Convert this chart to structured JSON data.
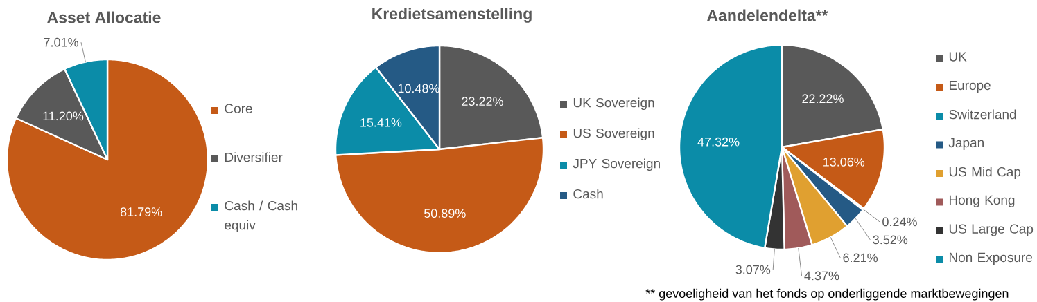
{
  "chart_data": [
    {
      "type": "pie",
      "title": "Asset Allocatie",
      "categories": [
        "Core",
        "Diversifier",
        "Cash / Cash equiv"
      ],
      "values": [
        81.79,
        11.2,
        7.01
      ],
      "colors": [
        "#c55a17",
        "#595959",
        "#0b8ca8"
      ],
      "value_labels": [
        "81.79%",
        "11.20%",
        "7.01%"
      ],
      "legend": "right"
    },
    {
      "type": "pie",
      "title": "Kredietsamenstelling",
      "categories": [
        "UK Sovereign",
        "US Sovereign",
        "JPY Sovereign",
        "Cash"
      ],
      "values": [
        23.22,
        50.89,
        15.41,
        10.48
      ],
      "colors": [
        "#595959",
        "#c55a17",
        "#0b8ca8",
        "#255a85"
      ],
      "value_labels": [
        "23.22%",
        "50.89%",
        "15.41%",
        "10.48%"
      ],
      "legend": "right"
    },
    {
      "type": "pie",
      "title": "Aandelendelta**",
      "categories": [
        "UK",
        "Europe",
        "Switzerland",
        "Japan",
        "US Mid Cap",
        "Hong Kong",
        "US Large Cap",
        "Non Exposure"
      ],
      "values": [
        22.22,
        13.06,
        0.24,
        3.52,
        6.21,
        4.37,
        3.07,
        47.32
      ],
      "colors": [
        "#595959",
        "#c55a17",
        "#0b8ca8",
        "#255a85",
        "#e0a030",
        "#a05a5a",
        "#333333",
        "#0b8ca8"
      ],
      "value_labels": [
        "22.22%",
        "13.06%",
        "0.24%",
        "3.52%",
        "6.21%",
        "4.37%",
        "3.07%",
        "47.32%"
      ],
      "legend": "right",
      "annotations": [
        "** gevoeligheid van het fonds op onderliggende marktbewegingen"
      ]
    }
  ]
}
